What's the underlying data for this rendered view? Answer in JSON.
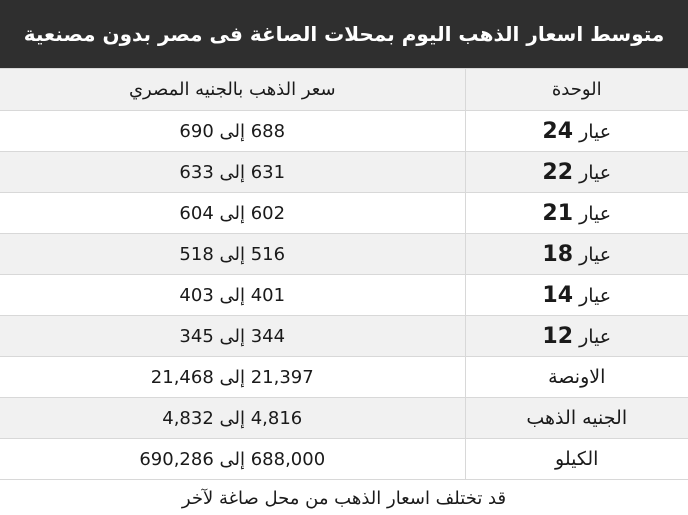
{
  "title": "متوسط اسعار الذهب اليوم بمحلات الصاغة فى مصر بدون مصنعية",
  "table": {
    "headers": {
      "unit": "الوحدة",
      "price": "سعر الذهب بالجنيه المصري"
    },
    "karat_word": "عيار",
    "rows": [
      {
        "karat": "24",
        "unit": "",
        "price": "688 إلى 690"
      },
      {
        "karat": "22",
        "unit": "",
        "price": "631 إلى 633"
      },
      {
        "karat": "21",
        "unit": "",
        "price": "602 إلى 604"
      },
      {
        "karat": "18",
        "unit": "",
        "price": "516 إلى 518"
      },
      {
        "karat": "14",
        "unit": "",
        "price": "401 إلى 403"
      },
      {
        "karat": "12",
        "unit": "",
        "price": "344 إلى 345"
      },
      {
        "karat": "",
        "unit": "الاونصة",
        "price": "21,397 إلى 21,468"
      },
      {
        "karat": "",
        "unit": "الجنيه الذهب",
        "price": "4,816 إلى 4,832"
      },
      {
        "karat": "",
        "unit": "الكيلو",
        "price": "688,000 إلى 690,286"
      }
    ]
  },
  "footer": "قد تختلف اسعار الذهب من محل صاغة لآخر"
}
